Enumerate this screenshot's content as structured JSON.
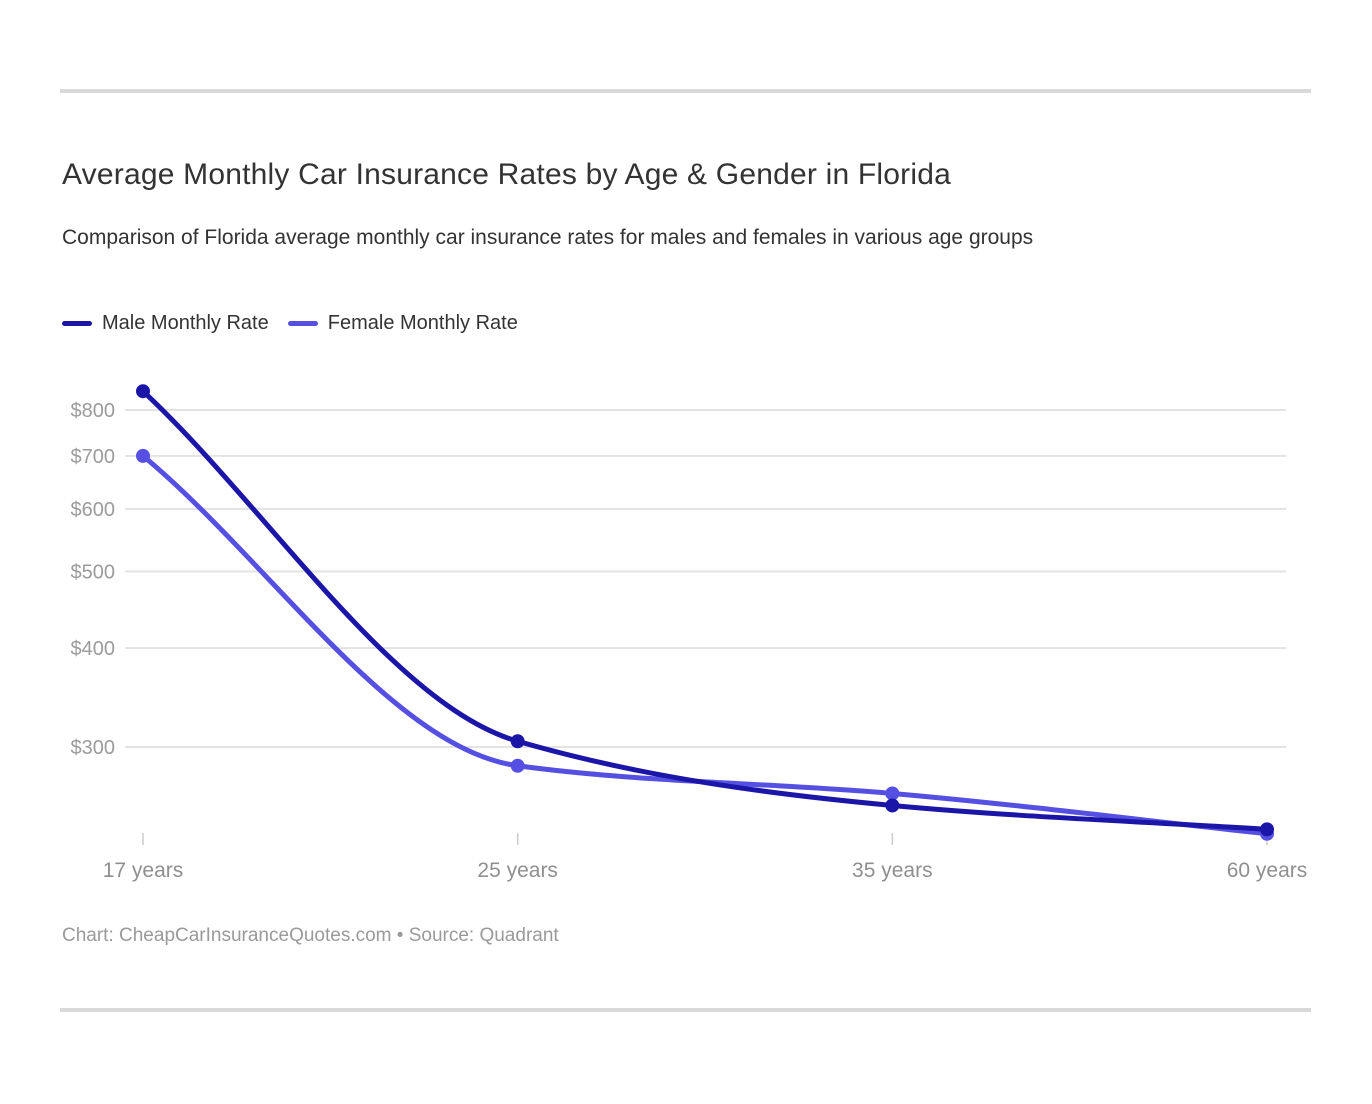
{
  "chart_data": {
    "type": "line",
    "title": "Average Monthly Car Insurance Rates by Age & Gender in Florida",
    "subtitle": "Comparison of Florida average monthly car insurance rates for males and females in various age groups",
    "categories": [
      "17 years",
      "25 years",
      "35 years",
      "60 years"
    ],
    "series": [
      {
        "name": "Male Monthly Rate",
        "color": "#1b16a8",
        "values": [
          845,
          305,
          253,
          236
        ]
      },
      {
        "name": "Female Monthly Rate",
        "color": "#5550e1",
        "values": [
          700,
          284,
          262,
          233
        ]
      }
    ],
    "y_axis": {
      "scale": "log",
      "ticks": [
        {
          "value": 800,
          "label": "$800"
        },
        {
          "value": 700,
          "label": "$700"
        },
        {
          "value": 600,
          "label": "$600"
        },
        {
          "value": 500,
          "label": "$500"
        },
        {
          "value": 400,
          "label": "$400"
        },
        {
          "value": 300,
          "label": "$300"
        }
      ]
    },
    "x_axis": {
      "tick_labels": [
        "17 years",
        "25 years",
        "35 years",
        "60 years"
      ]
    },
    "legend_position": "top-left",
    "grid": "horizontal-only",
    "curve": "monotone",
    "markers": "filled-circles"
  },
  "footer": {
    "text": "Chart: CheapCarInsuranceQuotes.com • Source: Quadrant"
  },
  "colors": {
    "male_line": "#1b16a8",
    "female_line": "#5550e1",
    "grid_line": "#e3e3e3",
    "y_axis_label": "#9b9b9b",
    "x_axis_label": "#8f8f8f",
    "x_tick_mark": "#cccccc",
    "divider": "#d9d9d9",
    "title_text": "#333333",
    "footer_text": "#9a9a9a"
  }
}
